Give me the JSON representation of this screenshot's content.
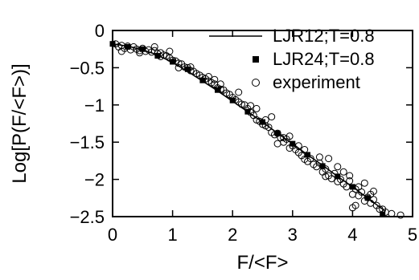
{
  "chart_data": {
    "type": "scatter",
    "title": "",
    "xlabel": "F/<F>",
    "ylabel": "Log[P(F/<F>)]",
    "xlim": [
      0,
      5
    ],
    "ylim": [
      -2.5,
      0
    ],
    "x_ticks": [
      "0",
      "1",
      "2",
      "3",
      "4",
      "5"
    ],
    "x_tick_values": [
      0,
      1,
      2,
      3,
      4,
      5
    ],
    "y_ticks": [
      "0",
      "-0.5",
      "-1",
      "-1.5",
      "-2",
      "-2.5"
    ],
    "y_tick_values": [
      0,
      -0.5,
      -1,
      -1.5,
      -2,
      -2.5
    ],
    "grid": false,
    "legend_position": "top-right",
    "series": [
      {
        "name": "LJR12;T=0.8",
        "style": "line",
        "color": "#000000",
        "points": [
          [
            0.0,
            -0.18
          ],
          [
            0.25,
            -0.21
          ],
          [
            0.5,
            -0.26
          ],
          [
            0.75,
            -0.33
          ],
          [
            1.0,
            -0.43
          ],
          [
            1.25,
            -0.55
          ],
          [
            1.5,
            -0.68
          ],
          [
            1.75,
            -0.81
          ],
          [
            2.0,
            -0.95
          ],
          [
            2.25,
            -1.09
          ],
          [
            2.5,
            -1.23
          ],
          [
            2.75,
            -1.38
          ],
          [
            3.0,
            -1.52
          ],
          [
            3.25,
            -1.67
          ],
          [
            3.5,
            -1.81
          ],
          [
            3.75,
            -1.96
          ],
          [
            4.0,
            -2.1
          ],
          [
            4.25,
            -2.25
          ],
          [
            4.5,
            -2.4
          ],
          [
            4.55,
            -2.43
          ]
        ]
      },
      {
        "name": "LJR24;T=0.8",
        "style": "square",
        "color": "#000000",
        "points": [
          [
            0.0,
            -0.18
          ],
          [
            0.25,
            -0.22
          ],
          [
            0.5,
            -0.25
          ],
          [
            0.75,
            -0.34
          ],
          [
            1.0,
            -0.42
          ],
          [
            1.25,
            -0.52
          ],
          [
            1.5,
            -0.67
          ],
          [
            1.75,
            -0.8
          ],
          [
            2.0,
            -0.94
          ],
          [
            2.25,
            -1.09
          ],
          [
            2.5,
            -1.23
          ],
          [
            2.75,
            -1.38
          ],
          [
            3.0,
            -1.52
          ],
          [
            3.25,
            -1.67
          ],
          [
            3.5,
            -1.82
          ],
          [
            3.75,
            -1.96
          ],
          [
            4.0,
            -2.1
          ],
          [
            4.25,
            -2.25
          ],
          [
            4.5,
            -2.47
          ]
        ]
      },
      {
        "name": "experiment",
        "style": "circle",
        "color": "#000000",
        "points": [
          [
            0.05,
            -0.18
          ],
          [
            0.1,
            -0.22
          ],
          [
            0.15,
            -0.2
          ],
          [
            0.2,
            -0.24
          ],
          [
            0.25,
            -0.21
          ],
          [
            0.3,
            -0.26
          ],
          [
            0.35,
            -0.22
          ],
          [
            0.4,
            -0.25
          ],
          [
            0.45,
            -0.27
          ],
          [
            0.5,
            -0.24
          ],
          [
            0.55,
            -0.28
          ],
          [
            0.6,
            -0.26
          ],
          [
            0.65,
            -0.29
          ],
          [
            0.7,
            -0.27
          ],
          [
            0.75,
            -0.31
          ],
          [
            0.8,
            -0.3
          ],
          [
            0.85,
            -0.33
          ],
          [
            0.9,
            -0.34
          ],
          [
            0.95,
            -0.37
          ],
          [
            1.0,
            -0.4
          ],
          [
            1.05,
            -0.41
          ],
          [
            1.1,
            -0.44
          ],
          [
            1.15,
            -0.45
          ],
          [
            1.2,
            -0.49
          ],
          [
            1.25,
            -0.5
          ],
          [
            1.3,
            -0.54
          ],
          [
            1.35,
            -0.55
          ],
          [
            1.4,
            -0.58
          ],
          [
            1.45,
            -0.6
          ],
          [
            1.5,
            -0.63
          ],
          [
            1.55,
            -0.65
          ],
          [
            1.6,
            -0.68
          ],
          [
            1.65,
            -0.7
          ],
          [
            1.7,
            -0.72
          ],
          [
            1.75,
            -0.77
          ],
          [
            1.8,
            -0.79
          ],
          [
            1.85,
            -0.8
          ],
          [
            1.9,
            -0.84
          ],
          [
            1.95,
            -0.86
          ],
          [
            2.0,
            -0.9
          ],
          [
            2.05,
            -0.93
          ],
          [
            2.1,
            -0.96
          ],
          [
            2.15,
            -0.99
          ],
          [
            2.2,
            -1.0
          ],
          [
            2.25,
            -1.05
          ],
          [
            2.3,
            -1.1
          ],
          [
            2.35,
            -1.14
          ],
          [
            2.4,
            -1.2
          ],
          [
            2.45,
            -1.22
          ],
          [
            2.5,
            -1.26
          ],
          [
            2.55,
            -1.28
          ],
          [
            2.6,
            -1.3
          ],
          [
            2.65,
            -1.37
          ],
          [
            2.7,
            -1.4
          ],
          [
            2.75,
            -1.38
          ],
          [
            2.8,
            -1.44
          ],
          [
            2.85,
            -1.5
          ],
          [
            2.9,
            -1.46
          ],
          [
            2.95,
            -1.58
          ],
          [
            3.0,
            -1.55
          ],
          [
            3.05,
            -1.6
          ],
          [
            3.1,
            -1.64
          ],
          [
            3.15,
            -1.68
          ],
          [
            3.2,
            -1.6
          ],
          [
            3.25,
            -1.76
          ],
          [
            3.3,
            -1.72
          ],
          [
            3.35,
            -1.8
          ],
          [
            3.4,
            -1.83
          ],
          [
            3.45,
            -1.78
          ],
          [
            3.5,
            -1.9
          ],
          [
            3.55,
            -1.86
          ],
          [
            3.6,
            -1.95
          ],
          [
            3.65,
            -1.99
          ],
          [
            3.7,
            -1.92
          ],
          [
            3.75,
            -2.03
          ],
          [
            3.8,
            -2.0
          ],
          [
            3.85,
            -2.06
          ],
          [
            3.9,
            -2.1
          ],
          [
            3.95,
            -2.02
          ],
          [
            4.0,
            -2.2
          ],
          [
            4.05,
            -2.13
          ],
          [
            4.1,
            -2.22
          ],
          [
            4.15,
            -2.17
          ],
          [
            4.2,
            -2.29
          ],
          [
            4.25,
            -2.24
          ],
          [
            4.3,
            -2.32
          ],
          [
            4.35,
            -2.27
          ],
          [
            4.4,
            -2.35
          ],
          [
            4.45,
            -2.4
          ],
          [
            4.55,
            -2.44
          ],
          [
            4.65,
            -2.46
          ],
          [
            4.8,
            -2.48
          ],
          [
            0.15,
            -0.28
          ],
          [
            0.45,
            -0.3
          ],
          [
            0.8,
            -0.35
          ],
          [
            1.1,
            -0.5
          ],
          [
            1.6,
            -0.62
          ],
          [
            2.3,
            -1.01
          ],
          [
            2.55,
            -1.2
          ],
          [
            2.85,
            -1.44
          ],
          [
            3.1,
            -1.55
          ],
          [
            3.45,
            -1.7
          ],
          [
            3.85,
            -1.9
          ],
          [
            4.1,
            -2.1
          ],
          [
            4.3,
            -2.2
          ],
          [
            0.95,
            -0.28
          ],
          [
            0.7,
            -0.22
          ],
          [
            2.95,
            -1.42
          ],
          [
            3.2,
            -1.73
          ],
          [
            3.6,
            -1.72
          ],
          [
            4.2,
            -2.05
          ],
          [
            3.95,
            -1.95
          ],
          [
            4.05,
            -2.35
          ],
          [
            2.65,
            -1.16
          ],
          [
            2.1,
            -0.83
          ],
          [
            1.8,
            -0.72
          ],
          [
            1.3,
            -0.49
          ],
          [
            2.75,
            -1.52
          ],
          [
            3.55,
            -1.96
          ],
          [
            3.75,
            -1.83
          ],
          [
            4.0,
            -2.38
          ],
          [
            2.4,
            -1.05
          ],
          [
            1.7,
            -0.66
          ],
          [
            4.35,
            -2.16
          ],
          [
            4.5,
            -2.4
          ]
        ]
      }
    ]
  }
}
